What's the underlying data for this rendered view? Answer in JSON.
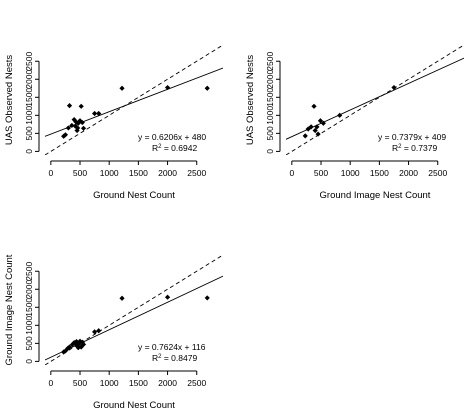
{
  "chart_data": [
    {
      "type": "scatter",
      "xlabel": "Ground Nest Count",
      "ylabel": "UAS Observed Nests",
      "xlim": [
        -100,
        2950
      ],
      "ylim": [
        -100,
        2950
      ],
      "x_ticks": [
        0,
        500,
        1000,
        1500,
        2000,
        2500
      ],
      "y_ticks": [
        0,
        500,
        1000,
        1500,
        2000,
        2500
      ],
      "equation": "y = 0.6206x + 480",
      "r2_label": "R",
      "r2_value": " = 0.6942",
      "fit": {
        "slope": 0.6206,
        "intercept": 480
      },
      "reference_line": {
        "slope": 1,
        "intercept": 0,
        "style": "dashed"
      },
      "series": [
        {
          "x": [
            220,
            250,
            300,
            320,
            360,
            400,
            420,
            430,
            450,
            460,
            470,
            500,
            520,
            540,
            560,
            750,
            820,
            1220,
            2000,
            2680
          ],
          "y": [
            420,
            460,
            650,
            1270,
            720,
            880,
            700,
            820,
            580,
            650,
            780,
            850,
            1250,
            800,
            640,
            1050,
            1050,
            1750,
            1770,
            1750
          ]
        }
      ]
    },
    {
      "type": "scatter",
      "xlabel": "Ground Image Nest Count",
      "ylabel": "UAS Observed Nests",
      "xlim": [
        -100,
        2950
      ],
      "ylim": [
        -100,
        2950
      ],
      "x_ticks": [
        0,
        500,
        1000,
        1500,
        2000,
        2500
      ],
      "y_ticks": [
        0,
        500,
        1000,
        1500,
        2000,
        2500
      ],
      "equation": "y = 0.7379x + 409",
      "r2_label": "R",
      "r2_value": " = 0.7379",
      "fit": {
        "slope": 0.7379,
        "intercept": 409
      },
      "reference_line": {
        "slope": 1,
        "intercept": 0,
        "style": "dashed"
      },
      "series": [
        {
          "x": [
            230,
            280,
            330,
            380,
            400,
            430,
            450,
            490,
            540,
            820,
            1750
          ],
          "y": [
            430,
            620,
            680,
            1250,
            580,
            680,
            480,
            850,
            780,
            1000,
            1770
          ]
        }
      ]
    },
    {
      "type": "scatter",
      "xlabel": "Ground Nest Count",
      "ylabel": "Ground Image Nest Count",
      "xlim": [
        -100,
        2950
      ],
      "ylim": [
        -100,
        2950
      ],
      "x_ticks": [
        0,
        500,
        1000,
        1500,
        2000,
        2500
      ],
      "y_ticks": [
        0,
        500,
        1000,
        1500,
        2000,
        2500
      ],
      "equation": "y = 0.7624x + 116",
      "r2_label": "R",
      "r2_value": " = 0.8479",
      "fit": {
        "slope": 0.7624,
        "intercept": 116
      },
      "reference_line": {
        "slope": 1,
        "intercept": 0,
        "style": "dashed"
      },
      "series": [
        {
          "x": [
            220,
            250,
            290,
            320,
            370,
            400,
            420,
            440,
            450,
            470,
            480,
            500,
            520,
            540,
            560,
            750,
            820,
            1220,
            2000,
            2680
          ],
          "y": [
            260,
            290,
            360,
            400,
            470,
            520,
            500,
            550,
            430,
            380,
            480,
            560,
            400,
            530,
            470,
            820,
            850,
            1750,
            1780,
            1760
          ]
        }
      ]
    }
  ]
}
